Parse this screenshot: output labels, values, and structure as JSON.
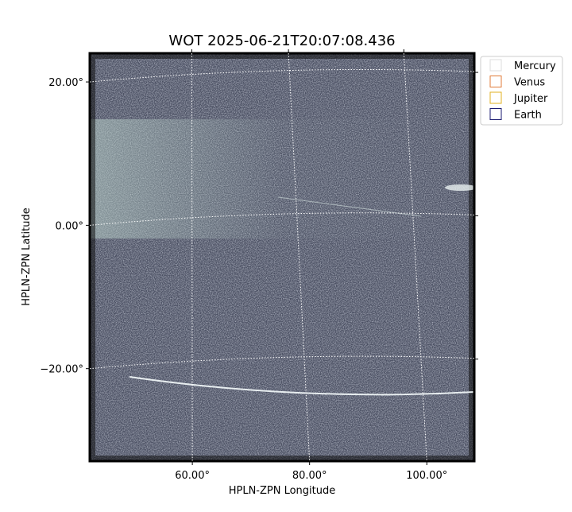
{
  "chart_data": {
    "type": "image",
    "title": "WOT 2025-06-21T20:07:08.436",
    "x_label": "HPLN-ZPN Longitude",
    "y_label": "HPLN-ZPN Latitude",
    "xlim": [
      42.5,
      108.1
    ],
    "ylim": [
      -32.9,
      24.0
    ],
    "xticks": [
      {
        "value": 60,
        "label": "60.00°"
      },
      {
        "value": 80,
        "label": "80.00°"
      },
      {
        "value": 100,
        "label": "100.00°"
      }
    ],
    "yticks": [
      {
        "value": 20,
        "label": "20.00°"
      },
      {
        "value": 0,
        "label": "0.00°"
      },
      {
        "value": -20,
        "label": "−20.00°"
      }
    ],
    "grid": true,
    "legend_position": "outside-upper-right",
    "series": [
      {
        "name": "Mercury",
        "color": "#dddddd"
      },
      {
        "name": "Venus",
        "color": "#e07b39"
      },
      {
        "name": "Jupiter",
        "color": "#e0b020"
      },
      {
        "name": "Earth",
        "color": "#1a1a70"
      }
    ]
  }
}
